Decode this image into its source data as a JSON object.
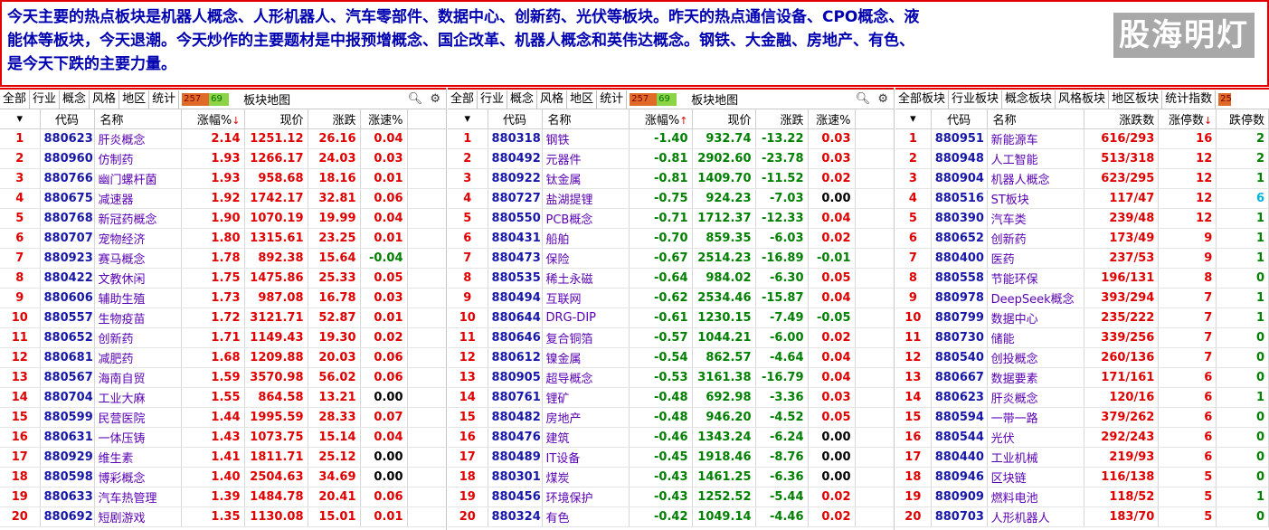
{
  "banner": {
    "text": "今天主要的热点板块是机器人概念、人形机器人、汽车零部件、数据中心、创新药、光伏等板块。昨天的热点通信设备、CPO概念、液\n能体等板块，今天退潮。今天炒作的主要题材是中报预增概念、国企改革、机器人概念和英伟达概念。钢铁、大金融、房地产、有色、\n是今天下跌的主要力量。",
    "watermark": "股海明灯"
  },
  "panel1": {
    "tabs": [
      "全部",
      "行业",
      "概念",
      "风格",
      "地区",
      "统计"
    ],
    "mini_up": "257",
    "mini_down": "69",
    "heatmap": "板块地图",
    "headers": [
      "代码",
      "名称",
      "涨幅%",
      "现价",
      "涨跌",
      "涨速%"
    ],
    "sort_arrow": "↓",
    "rows": [
      {
        "rank": "1",
        "code": "880623",
        "name": "肝炎概念",
        "pct": "2.14",
        "price": "1251.12",
        "chg": "26.16",
        "speed": "0.04",
        "speed_dir": "up"
      },
      {
        "rank": "2",
        "code": "880960",
        "name": "仿制药",
        "pct": "1.93",
        "price": "1266.17",
        "chg": "24.03",
        "speed": "0.03",
        "speed_dir": "up"
      },
      {
        "rank": "3",
        "code": "880766",
        "name": "幽门螺杆菌",
        "pct": "1.93",
        "price": "958.68",
        "chg": "18.16",
        "speed": "0.01",
        "speed_dir": "up"
      },
      {
        "rank": "4",
        "code": "880675",
        "name": "减速器",
        "pct": "1.92",
        "price": "1742.17",
        "chg": "32.81",
        "speed": "0.06",
        "speed_dir": "up"
      },
      {
        "rank": "5",
        "code": "880768",
        "name": "新冠药概念",
        "pct": "1.90",
        "price": "1070.19",
        "chg": "19.99",
        "speed": "0.04",
        "speed_dir": "up"
      },
      {
        "rank": "6",
        "code": "880707",
        "name": "宠物经济",
        "pct": "1.80",
        "price": "1315.61",
        "chg": "23.25",
        "speed": "0.01",
        "speed_dir": "up"
      },
      {
        "rank": "7",
        "code": "880923",
        "name": "赛马概念",
        "pct": "1.78",
        "price": "892.38",
        "chg": "15.64",
        "speed": "-0.04",
        "speed_dir": "down"
      },
      {
        "rank": "8",
        "code": "880422",
        "name": "文教休闲",
        "pct": "1.75",
        "price": "1475.86",
        "chg": "25.33",
        "speed": "0.05",
        "speed_dir": "up"
      },
      {
        "rank": "9",
        "code": "880606",
        "name": "辅助生殖",
        "pct": "1.73",
        "price": "987.08",
        "chg": "16.78",
        "speed": "0.03",
        "speed_dir": "up"
      },
      {
        "rank": "10",
        "code": "880557",
        "name": "生物疫苗",
        "pct": "1.72",
        "price": "3121.71",
        "chg": "52.87",
        "speed": "0.01",
        "speed_dir": "up"
      },
      {
        "rank": "11",
        "code": "880652",
        "name": "创新药",
        "pct": "1.71",
        "price": "1149.43",
        "chg": "19.30",
        "speed": "0.02",
        "speed_dir": "up"
      },
      {
        "rank": "12",
        "code": "880681",
        "name": "减肥药",
        "pct": "1.68",
        "price": "1209.88",
        "chg": "20.03",
        "speed": "0.06",
        "speed_dir": "up"
      },
      {
        "rank": "13",
        "code": "880567",
        "name": "海南自贸",
        "pct": "1.59",
        "price": "3570.98",
        "chg": "56.02",
        "speed": "0.06",
        "speed_dir": "up"
      },
      {
        "rank": "14",
        "code": "880704",
        "name": "工业大麻",
        "pct": "1.55",
        "price": "864.58",
        "chg": "13.21",
        "speed": "0.00",
        "speed_dir": "flat"
      },
      {
        "rank": "15",
        "code": "880599",
        "name": "民营医院",
        "pct": "1.44",
        "price": "1995.59",
        "chg": "28.33",
        "speed": "0.07",
        "speed_dir": "up"
      },
      {
        "rank": "16",
        "code": "880631",
        "name": "一体压铸",
        "pct": "1.43",
        "price": "1073.75",
        "chg": "15.14",
        "speed": "0.04",
        "speed_dir": "up"
      },
      {
        "rank": "17",
        "code": "880929",
        "name": "维生素",
        "pct": "1.41",
        "price": "1811.71",
        "chg": "25.12",
        "speed": "0.00",
        "speed_dir": "flat"
      },
      {
        "rank": "18",
        "code": "880598",
        "name": "博彩概念",
        "pct": "1.40",
        "price": "2504.63",
        "chg": "34.69",
        "speed": "0.00",
        "speed_dir": "flat"
      },
      {
        "rank": "19",
        "code": "880633",
        "name": "汽车热管理",
        "pct": "1.39",
        "price": "1484.78",
        "chg": "20.41",
        "speed": "0.06",
        "speed_dir": "up"
      },
      {
        "rank": "20",
        "code": "880692",
        "name": "短剧游戏",
        "pct": "1.35",
        "price": "1130.08",
        "chg": "15.01",
        "speed": "0.01",
        "speed_dir": "up"
      }
    ]
  },
  "panel2": {
    "tabs": [
      "全部",
      "行业",
      "概念",
      "风格",
      "地区",
      "统计"
    ],
    "mini_up": "257",
    "mini_down": "69",
    "heatmap": "板块地图",
    "headers": [
      "代码",
      "名称",
      "涨幅%",
      "现价",
      "涨跌",
      "涨速%"
    ],
    "sort_arrow": "↑",
    "rows": [
      {
        "rank": "1",
        "code": "880318",
        "name": "钢铁",
        "pct": "-1.40",
        "price": "932.74",
        "chg": "-13.22",
        "speed": "0.03",
        "speed_dir": "up"
      },
      {
        "rank": "2",
        "code": "880492",
        "name": "元器件",
        "pct": "-0.81",
        "price": "2902.60",
        "chg": "-23.78",
        "speed": "0.03",
        "speed_dir": "up"
      },
      {
        "rank": "3",
        "code": "880922",
        "name": "钛金属",
        "pct": "-0.81",
        "price": "1409.70",
        "chg": "-11.52",
        "speed": "0.02",
        "speed_dir": "up"
      },
      {
        "rank": "4",
        "code": "880727",
        "name": "盐湖提锂",
        "pct": "-0.75",
        "price": "924.23",
        "chg": "-7.03",
        "speed": "0.00",
        "speed_dir": "flat"
      },
      {
        "rank": "5",
        "code": "880550",
        "name": "PCB概念",
        "pct": "-0.71",
        "price": "1712.37",
        "chg": "-12.33",
        "speed": "0.04",
        "speed_dir": "up"
      },
      {
        "rank": "6",
        "code": "880431",
        "name": "船舶",
        "pct": "-0.70",
        "price": "859.35",
        "chg": "-6.03",
        "speed": "0.02",
        "speed_dir": "up"
      },
      {
        "rank": "7",
        "code": "880473",
        "name": "保险",
        "pct": "-0.67",
        "price": "2514.23",
        "chg": "-16.89",
        "speed": "-0.01",
        "speed_dir": "down"
      },
      {
        "rank": "8",
        "code": "880535",
        "name": "稀土永磁",
        "pct": "-0.64",
        "price": "984.02",
        "chg": "-6.30",
        "speed": "0.05",
        "speed_dir": "up"
      },
      {
        "rank": "9",
        "code": "880494",
        "name": "互联网",
        "pct": "-0.62",
        "price": "2534.46",
        "chg": "-15.87",
        "speed": "0.04",
        "speed_dir": "up"
      },
      {
        "rank": "10",
        "code": "880644",
        "name": "DRG-DIP",
        "pct": "-0.61",
        "price": "1230.15",
        "chg": "-7.49",
        "speed": "-0.05",
        "speed_dir": "down"
      },
      {
        "rank": "11",
        "code": "880646",
        "name": "复合铜箔",
        "pct": "-0.57",
        "price": "1044.21",
        "chg": "-6.00",
        "speed": "0.02",
        "speed_dir": "up"
      },
      {
        "rank": "12",
        "code": "880612",
        "name": "镍金属",
        "pct": "-0.54",
        "price": "862.57",
        "chg": "-4.64",
        "speed": "0.04",
        "speed_dir": "up"
      },
      {
        "rank": "13",
        "code": "880905",
        "name": "超导概念",
        "pct": "-0.53",
        "price": "3161.38",
        "chg": "-16.79",
        "speed": "0.04",
        "speed_dir": "up"
      },
      {
        "rank": "14",
        "code": "880761",
        "name": "锂矿",
        "pct": "-0.48",
        "price": "692.98",
        "chg": "-3.36",
        "speed": "0.03",
        "speed_dir": "up"
      },
      {
        "rank": "15",
        "code": "880482",
        "name": "房地产",
        "pct": "-0.48",
        "price": "946.20",
        "chg": "-4.52",
        "speed": "0.05",
        "speed_dir": "up"
      },
      {
        "rank": "16",
        "code": "880476",
        "name": "建筑",
        "pct": "-0.46",
        "price": "1343.24",
        "chg": "-6.24",
        "speed": "0.00",
        "speed_dir": "flat"
      },
      {
        "rank": "17",
        "code": "880489",
        "name": "IT设备",
        "pct": "-0.45",
        "price": "1918.46",
        "chg": "-8.76",
        "speed": "0.00",
        "speed_dir": "flat"
      },
      {
        "rank": "18",
        "code": "880301",
        "name": "煤炭",
        "pct": "-0.43",
        "price": "1461.25",
        "chg": "-6.36",
        "speed": "0.00",
        "speed_dir": "flat"
      },
      {
        "rank": "19",
        "code": "880456",
        "name": "环境保护",
        "pct": "-0.43",
        "price": "1252.52",
        "chg": "-5.44",
        "speed": "0.02",
        "speed_dir": "up"
      },
      {
        "rank": "20",
        "code": "880324",
        "name": "有色",
        "pct": "-0.42",
        "price": "1049.14",
        "chg": "-4.46",
        "speed": "0.02",
        "speed_dir": "up"
      }
    ]
  },
  "panel3": {
    "tabs": [
      "全部板块",
      "行业板块",
      "概念板块",
      "风格板块",
      "地区板块",
      "统计指数",
      "25"
    ],
    "headers": [
      "代码",
      "名称",
      "涨跌数",
      "涨停数",
      "跌停数"
    ],
    "sort_arrow": "↓",
    "rows": [
      {
        "rank": "1",
        "code": "880951",
        "name": "新能源车",
        "updown": "616/293",
        "limit_up": "16",
        "limit_down": "2",
        "ld_color": "down"
      },
      {
        "rank": "2",
        "code": "880948",
        "name": "人工智能",
        "updown": "513/318",
        "limit_up": "12",
        "limit_down": "2",
        "ld_color": "down"
      },
      {
        "rank": "3",
        "code": "880904",
        "name": "机器人概念",
        "updown": "623/295",
        "limit_up": "12",
        "limit_down": "1",
        "ld_color": "down"
      },
      {
        "rank": "4",
        "code": "880516",
        "name": "ST板块",
        "updown": "117/47",
        "limit_up": "12",
        "limit_down": "6",
        "ld_color": "cyan"
      },
      {
        "rank": "5",
        "code": "880390",
        "name": "汽车类",
        "updown": "239/48",
        "limit_up": "12",
        "limit_down": "1",
        "ld_color": "down"
      },
      {
        "rank": "6",
        "code": "880652",
        "name": "创新药",
        "updown": "173/49",
        "limit_up": "9",
        "limit_down": "1",
        "ld_color": "down"
      },
      {
        "rank": "7",
        "code": "880400",
        "name": "医药",
        "updown": "237/53",
        "limit_up": "9",
        "limit_down": "1",
        "ld_color": "down"
      },
      {
        "rank": "8",
        "code": "880558",
        "name": "节能环保",
        "updown": "196/131",
        "limit_up": "8",
        "limit_down": "0",
        "ld_color": "down"
      },
      {
        "rank": "9",
        "code": "880978",
        "name": "DeepSeek概念",
        "updown": "393/294",
        "limit_up": "7",
        "limit_down": "1",
        "ld_color": "down"
      },
      {
        "rank": "10",
        "code": "880799",
        "name": "数据中心",
        "updown": "235/222",
        "limit_up": "7",
        "limit_down": "1",
        "ld_color": "down"
      },
      {
        "rank": "11",
        "code": "880730",
        "name": "储能",
        "updown": "339/256",
        "limit_up": "7",
        "limit_down": "0",
        "ld_color": "down"
      },
      {
        "rank": "12",
        "code": "880540",
        "name": "创投概念",
        "updown": "260/136",
        "limit_up": "7",
        "limit_down": "0",
        "ld_color": "down"
      },
      {
        "rank": "13",
        "code": "880667",
        "name": "数据要素",
        "updown": "171/161",
        "limit_up": "6",
        "limit_down": "0",
        "ld_color": "down"
      },
      {
        "rank": "14",
        "code": "880623",
        "name": "肝炎概念",
        "updown": "120/16",
        "limit_up": "6",
        "limit_down": "1",
        "ld_color": "down"
      },
      {
        "rank": "15",
        "code": "880594",
        "name": "一带一路",
        "updown": "379/262",
        "limit_up": "6",
        "limit_down": "0",
        "ld_color": "down"
      },
      {
        "rank": "16",
        "code": "880544",
        "name": "光伏",
        "updown": "292/243",
        "limit_up": "6",
        "limit_down": "0",
        "ld_color": "down"
      },
      {
        "rank": "17",
        "code": "880440",
        "name": "工业机械",
        "updown": "219/93",
        "limit_up": "6",
        "limit_down": "0",
        "ld_color": "down"
      },
      {
        "rank": "18",
        "code": "880946",
        "name": "区块链",
        "updown": "116/138",
        "limit_up": "5",
        "limit_down": "0",
        "ld_color": "down"
      },
      {
        "rank": "19",
        "code": "880909",
        "name": "燃料电池",
        "updown": "118/52",
        "limit_up": "5",
        "limit_down": "1",
        "ld_color": "down"
      },
      {
        "rank": "20",
        "code": "880703",
        "name": "人形机器人",
        "updown": "183/70",
        "limit_up": "5",
        "limit_down": "0",
        "ld_color": "down"
      }
    ]
  }
}
